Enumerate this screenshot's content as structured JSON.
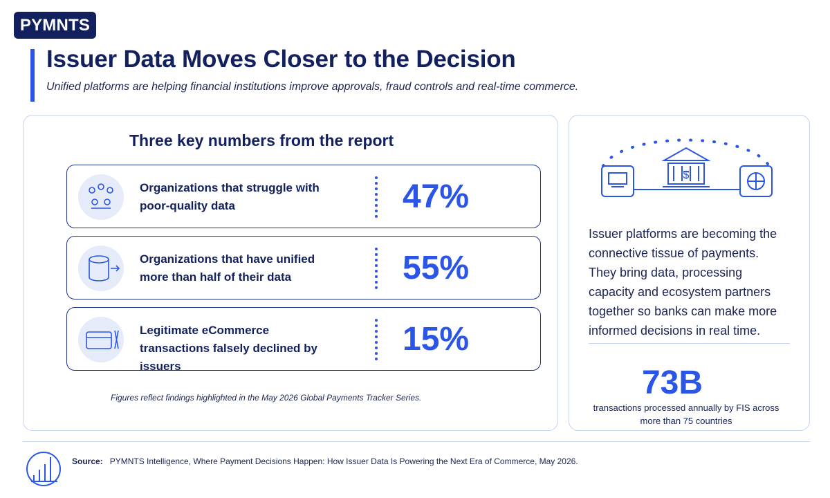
{
  "brand": {
    "logo_text": "PYMNTS",
    "accent": "#2a55e6",
    "navy": "#13205e"
  },
  "header": {
    "title": "Issuer Data Moves Closer to the Decision",
    "subtitle": "Unified platforms are helping financial institutions improve approvals, fraud controls and real-time commerce."
  },
  "key_numbers": {
    "heading": "Three key numbers from the report",
    "items": [
      {
        "icon": "network-nodes-icon",
        "label": "Organizations that struggle with poor-quality data",
        "value": "47%"
      },
      {
        "icon": "database-arrow-icon",
        "label": "Organizations that have unified more than half of their data",
        "value": "55%"
      },
      {
        "icon": "card-declined-icon",
        "label": "Legitimate eCommerce transactions falsely declined by issuers",
        "value": "15%"
      }
    ],
    "footnote": "Figures reflect findings highlighted in the May 2026 Global Payments Tracker Series."
  },
  "side_panel": {
    "illustration": "bank-network-icon",
    "text": "Issuer platforms are becoming the connective tissue of payments. They bring data, processing capacity and ecosystem partners together so banks can make more informed decisions in real time.",
    "big_number": "73B",
    "caption": "transactions processed annually by FIS across more than 75 countries"
  },
  "source": {
    "label": "Source:",
    "text": "PYMNTS Intelligence, Where Payment Decisions Happen: How Issuer Data Is Powering the Next Era of Commerce, May 2026."
  }
}
